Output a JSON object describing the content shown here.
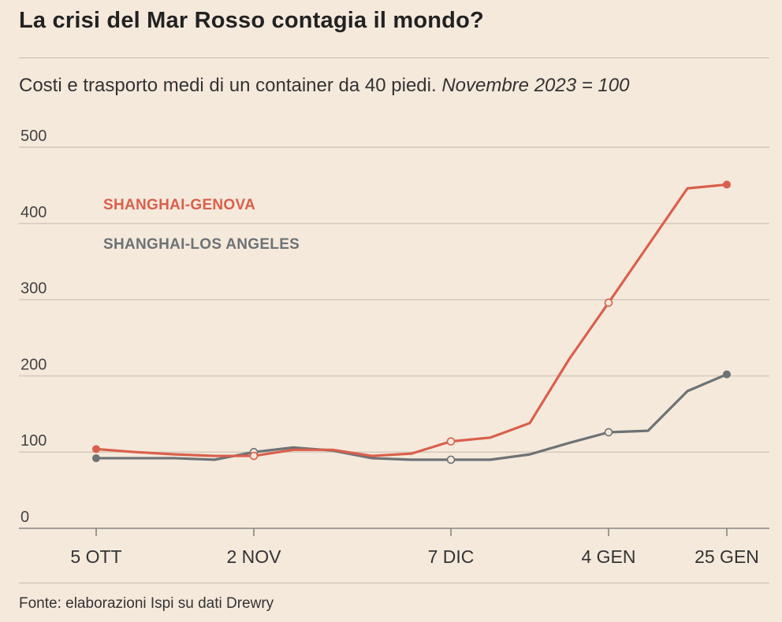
{
  "chart_data": {
    "type": "line",
    "title": "La crisi del Mar Rosso contagia il mondo?",
    "subtitle": "Costi e trasporto medi di un container da 40 piedi.",
    "subtitle_italic": "Novembre 2023 = 100",
    "source": "Fonte: elaborazioni Ispi su dati Drewry",
    "xlabel": "",
    "ylabel": "",
    "ylim": [
      0,
      500
    ],
    "yticks": [
      0,
      100,
      200,
      300,
      400,
      500
    ],
    "x_range": [
      0,
      16
    ],
    "xticks": [
      {
        "x": 0,
        "label": "5 OTT"
      },
      {
        "x": 4,
        "label": "2 NOV"
      },
      {
        "x": 9,
        "label": "7 DIC"
      },
      {
        "x": 13,
        "label": "4 GEN"
      },
      {
        "x": 16,
        "label": "25 GEN"
      }
    ],
    "series": [
      {
        "name": "SHANGHAI-GENOVA",
        "color": "#d9604c",
        "x": [
          0,
          1,
          2,
          3,
          4,
          5,
          6,
          7,
          8,
          9,
          10,
          11,
          12,
          13,
          14,
          15,
          16
        ],
        "values": [
          104,
          100,
          97,
          95,
          95,
          103,
          103,
          95,
          98,
          114,
          119,
          138,
          222,
          296,
          371,
          446,
          451
        ],
        "open_markers": [
          4,
          9,
          13
        ],
        "end_markers": [
          0,
          16
        ]
      },
      {
        "name": "SHANGHAI-LOS ANGELES",
        "color": "#6d7275",
        "x": [
          0,
          1,
          2,
          3,
          4,
          5,
          6,
          7,
          8,
          9,
          10,
          11,
          12,
          13,
          14,
          15,
          16
        ],
        "values": [
          92,
          92,
          92,
          90,
          100,
          106,
          102,
          92,
          90,
          90,
          90,
          97,
          112,
          126,
          128,
          180,
          202
        ],
        "open_markers": [
          4,
          9,
          13
        ],
        "end_markers": [
          0,
          16
        ]
      }
    ]
  }
}
